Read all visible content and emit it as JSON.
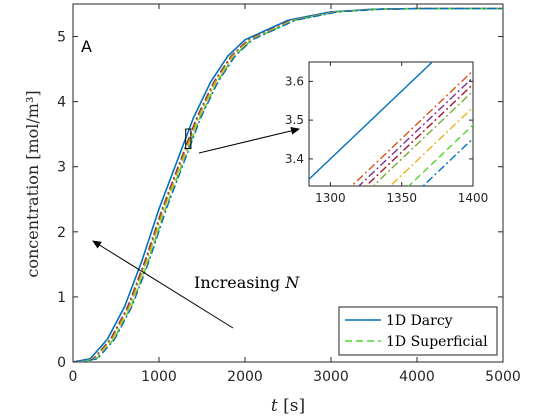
{
  "chart_data": {
    "type": "line",
    "panel_label": "A",
    "xlabel": "t [s]",
    "xlabel_var": "t",
    "xlabel_unit": " [s]",
    "ylabel": "concentration [mol/m³]",
    "xlim": [
      0,
      5000
    ],
    "ylim": [
      0,
      5.5
    ],
    "x_ticks": [
      0,
      1000,
      2000,
      3000,
      4000,
      5000
    ],
    "y_ticks": [
      0,
      1,
      2,
      3,
      4,
      5
    ],
    "grid": false,
    "legend_position": "bottom-right",
    "annotation": {
      "text": "Increasing",
      "var": "N"
    },
    "series": [
      {
        "name": "1D Darcy",
        "color": "#0072BD",
        "dash": "solid",
        "shift": 0
      },
      {
        "name": "1D Superficial",
        "color": "#4DD82E",
        "dash": "dashed",
        "shift": 75
      },
      {
        "color": "#D95319",
        "dash": "dashdot",
        "shift": 35
      },
      {
        "color": "#7E2F8E",
        "dash": "dashdot",
        "shift": 40
      },
      {
        "color": "#A2142F",
        "dash": "dashdot",
        "shift": 45
      },
      {
        "color": "#77AC30",
        "dash": "dashdot",
        "shift": 50
      },
      {
        "color": "#EDB120",
        "dash": "dashdot",
        "shift": 62
      },
      {
        "color": "#0072BD",
        "dash": "dashdot",
        "shift": 85
      }
    ],
    "base_curve": {
      "x": [
        0,
        200,
        400,
        600,
        800,
        1000,
        1200,
        1400,
        1600,
        1800,
        2000,
        2500,
        3000,
        3500,
        4000,
        5000
      ],
      "y": [
        0,
        0.05,
        0.35,
        0.85,
        1.55,
        2.35,
        3.05,
        3.75,
        4.3,
        4.7,
        4.95,
        5.25,
        5.38,
        5.42,
        5.43,
        5.43
      ]
    },
    "inset": {
      "xlim": [
        1285,
        1400
      ],
      "ylim": [
        3.33,
        3.65
      ],
      "x_ticks": [
        1300,
        1350,
        1400
      ],
      "y_ticks": [
        3.4,
        3.5,
        3.6
      ],
      "zoom_box": {
        "x": [
          1310,
          1370
        ],
        "y": [
          3.28,
          3.58
        ]
      }
    }
  }
}
